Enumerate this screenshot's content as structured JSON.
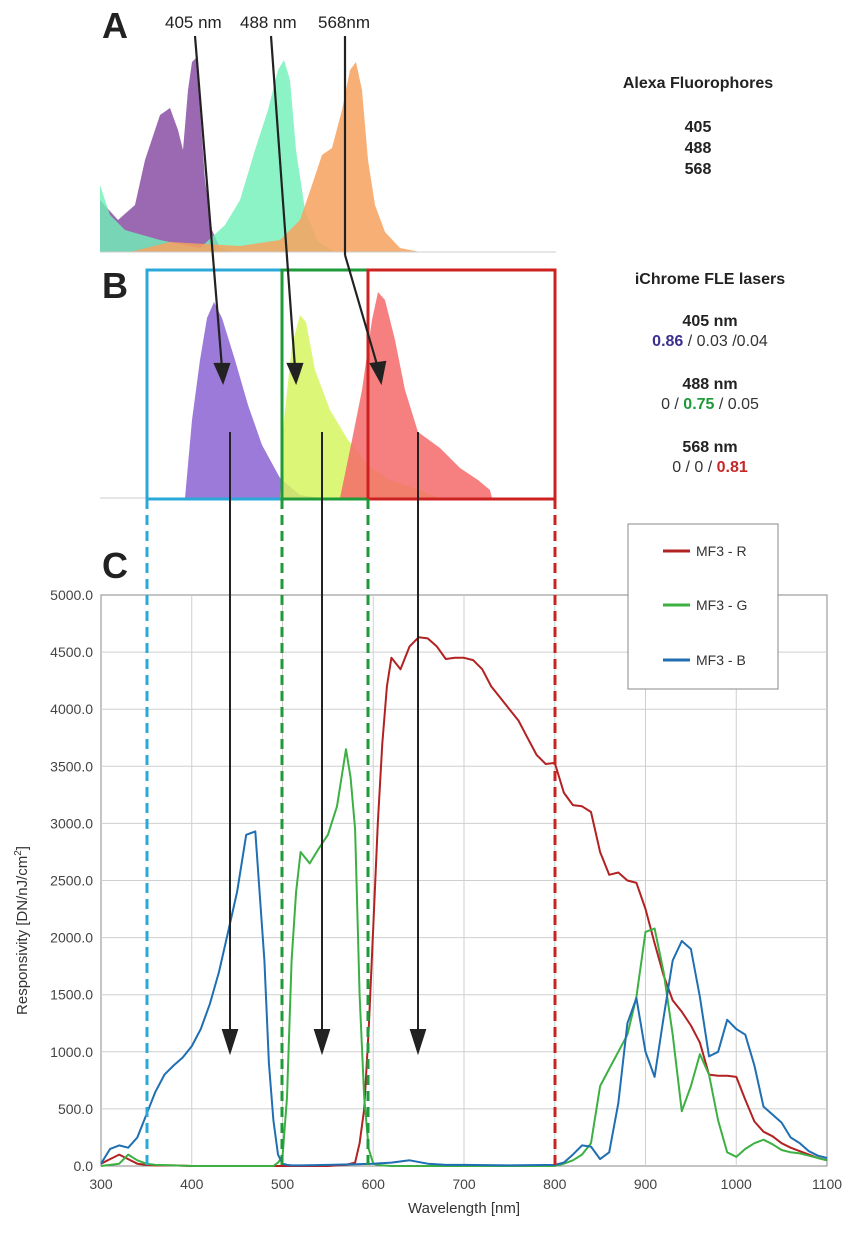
{
  "panels": {
    "a": "A",
    "b": "B",
    "c": "C"
  },
  "excitation_labels": [
    "405 nm",
    "488 nm",
    "568nm"
  ],
  "info": {
    "fluor_title": "Alexa Fluorophores",
    "fluor_items": [
      "405",
      "488",
      "568"
    ],
    "laser_title": "iChrome FLE lasers",
    "lasers": [
      {
        "name": "405 nm",
        "parts": [
          {
            "t": "0.86",
            "c": "#3b2f8f",
            "b": true
          },
          {
            "t": " / 0.03 /0.04",
            "c": "#333",
            "b": false
          }
        ]
      },
      {
        "name": "488 nm",
        "parts": [
          {
            "t": "0 / ",
            "c": "#333",
            "b": false
          },
          {
            "t": "0.75",
            "c": "#1e9a3a",
            "b": true
          },
          {
            "t": " / 0.05",
            "c": "#333",
            "b": false
          }
        ]
      },
      {
        "name": "568 nm",
        "parts": [
          {
            "t": "0 / 0 / ",
            "c": "#333",
            "b": false
          },
          {
            "t": "0.81",
            "c": "#c62828",
            "b": true
          }
        ]
      }
    ]
  },
  "colors": {
    "red": "#b22222",
    "green": "#3cb043",
    "blue": "#1f6fb2",
    "box_blue": "#2aa8d8",
    "box_green": "#1e9a3a",
    "box_red": "#cc2222",
    "abs_purple": "#8a4fa3",
    "abs_teal": "#6ff0b8",
    "abs_orange": "#f7a15e",
    "em_purple": "#8a63d2",
    "em_yellow": "#d6f560",
    "em_red": "#f46a6a"
  },
  "chart_data": {
    "type": "line",
    "xlabel": "Wavelength [nm]",
    "ylabel": "Responsivity [DN/nJ/cm",
    "ylabel_sup": "2",
    "ylabel_close": "]",
    "xlim": [
      300,
      1100
    ],
    "ylim": [
      0,
      5000
    ],
    "x_ticks": [
      300,
      400,
      500,
      600,
      700,
      800,
      900,
      1000,
      1100
    ],
    "x_tick_labels": [
      "300",
      "400",
      "500",
      "600",
      "700",
      "800",
      "900",
      "1000",
      "1100"
    ],
    "y_ticks": [
      0,
      500,
      1000,
      1500,
      2000,
      2500,
      3000,
      3500,
      4000,
      4500,
      5000
    ],
    "y_tick_labels": [
      "0.0",
      "500.0",
      "1000.0",
      "1500.0",
      "2000.0",
      "2500.0",
      "3000.0",
      "3500.0",
      "4000.0",
      "4500.0",
      "5000.0"
    ],
    "legend_position": "top-right",
    "series": [
      {
        "name": "MF3 - R",
        "color": "#b22222",
        "x": [
          300,
          310,
          320,
          330,
          340,
          350,
          360,
          380,
          400,
          450,
          500,
          550,
          570,
          580,
          585,
          590,
          595,
          600,
          605,
          610,
          615,
          620,
          630,
          640,
          650,
          660,
          670,
          680,
          690,
          700,
          710,
          720,
          730,
          740,
          750,
          760,
          770,
          780,
          790,
          800,
          810,
          820,
          830,
          840,
          850,
          860,
          870,
          880,
          890,
          900,
          910,
          920,
          930,
          940,
          950,
          960,
          970,
          980,
          990,
          1000,
          1010,
          1020,
          1030,
          1040,
          1050,
          1060,
          1070,
          1080,
          1090,
          1100
        ],
        "y": [
          20,
          60,
          100,
          60,
          20,
          10,
          5,
          5,
          0,
          0,
          0,
          0,
          10,
          30,
          200,
          500,
          1200,
          2100,
          3000,
          3700,
          4200,
          4450,
          4350,
          4550,
          4630,
          4620,
          4550,
          4440,
          4450,
          4450,
          4430,
          4350,
          4200,
          4100,
          4000,
          3900,
          3750,
          3600,
          3520,
          3530,
          3270,
          3160,
          3150,
          3100,
          2750,
          2550,
          2570,
          2500,
          2480,
          2250,
          1950,
          1670,
          1450,
          1350,
          1230,
          1080,
          800,
          790,
          790,
          780,
          580,
          390,
          300,
          260,
          200,
          160,
          130,
          100,
          70,
          50
        ]
      },
      {
        "name": "MF3 - G",
        "color": "#3cb043",
        "x": [
          300,
          310,
          320,
          330,
          340,
          350,
          360,
          380,
          400,
          450,
          490,
          495,
          500,
          505,
          510,
          515,
          520,
          530,
          540,
          550,
          560,
          570,
          575,
          580,
          585,
          590,
          595,
          600,
          605,
          610,
          620,
          650,
          700,
          750,
          800,
          810,
          820,
          830,
          840,
          850,
          860,
          870,
          880,
          890,
          900,
          910,
          920,
          930,
          940,
          950,
          960,
          970,
          980,
          990,
          1000,
          1010,
          1020,
          1030,
          1040,
          1050,
          1060,
          1070,
          1080,
          1090,
          1100
        ],
        "y": [
          0,
          10,
          20,
          100,
          50,
          20,
          10,
          5,
          0,
          0,
          0,
          30,
          80,
          600,
          1800,
          2400,
          2750,
          2650,
          2780,
          2900,
          3150,
          3650,
          3400,
          2950,
          1500,
          600,
          150,
          20,
          10,
          5,
          0,
          0,
          0,
          0,
          0,
          20,
          50,
          100,
          200,
          700,
          850,
          1000,
          1150,
          1480,
          2050,
          2080,
          1700,
          1150,
          480,
          700,
          980,
          800,
          400,
          120,
          80,
          150,
          200,
          230,
          190,
          140,
          120,
          110,
          90,
          70,
          50
        ]
      },
      {
        "name": "MF3 - B",
        "color": "#1f6fb2",
        "x": [
          300,
          310,
          320,
          330,
          340,
          350,
          360,
          370,
          380,
          390,
          400,
          410,
          420,
          430,
          440,
          450,
          460,
          470,
          480,
          485,
          490,
          495,
          500,
          505,
          510,
          520,
          550,
          580,
          600,
          620,
          640,
          660,
          680,
          700,
          750,
          800,
          810,
          820,
          830,
          840,
          850,
          860,
          870,
          880,
          890,
          900,
          910,
          920,
          930,
          940,
          950,
          960,
          970,
          980,
          990,
          1000,
          1010,
          1020,
          1030,
          1040,
          1050,
          1060,
          1070,
          1080,
          1090,
          1100
        ],
        "y": [
          20,
          150,
          180,
          160,
          250,
          450,
          650,
          800,
          880,
          950,
          1050,
          1200,
          1420,
          1700,
          2050,
          2400,
          2900,
          2930,
          1800,
          900,
          400,
          100,
          20,
          10,
          5,
          5,
          10,
          15,
          20,
          30,
          50,
          20,
          10,
          10,
          5,
          10,
          30,
          100,
          180,
          170,
          60,
          120,
          550,
          1250,
          1470,
          1000,
          780,
          1300,
          1800,
          1970,
          1900,
          1480,
          960,
          1000,
          1280,
          1200,
          1150,
          880,
          520,
          450,
          380,
          250,
          200,
          130,
          90,
          70
        ]
      }
    ]
  }
}
